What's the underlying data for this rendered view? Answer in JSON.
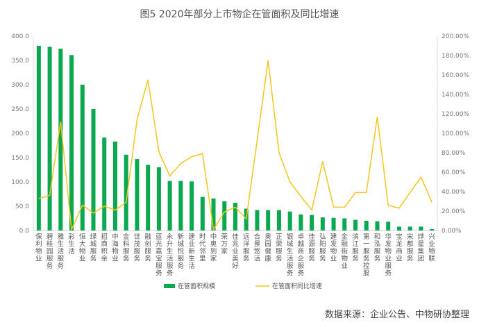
{
  "title": "图5  2020年部分上市物企在管面积及同比增速",
  "source": "数据来源：企业公告、中物研协整理",
  "colors": {
    "bar": "#0aa84f",
    "line": "#f6c51b"
  },
  "chart_data": {
    "type": "bar+line",
    "title": "图5  2020年部分上市物企在管面积及同比增速",
    "categories": [
      "保利物业",
      "碧桂园服务",
      "雅生活服务",
      "彩生活",
      "恒大物业",
      "绿城服务",
      "招商积余",
      "中海物业",
      "金科服务",
      "世茂服务",
      "融创服务",
      "蓝光嘉宝服务",
      "永升生活服务",
      "新城悦服务",
      "建业新生活",
      "时代邻里",
      "中奥到家",
      "荣万家",
      "佳兆业美好",
      "远洋服务",
      "合景悠活",
      "奥园健康",
      "正荣服务",
      "银城生活服务",
      "卓越商企服务",
      "佳源服务",
      "弘阳服务",
      "建发物业",
      "金融街物业",
      "滨江服务",
      "第一服务控股",
      "和泓服务",
      "华发物业服务",
      "宝龙商业",
      "宋都服务",
      "烨星集团",
      "兴业物联"
    ],
    "series": [
      {
        "name": "在管面积规模",
        "type": "bar",
        "axis": "left",
        "values": [
          380,
          378,
          374,
          361,
          300,
          250,
          191,
          183,
          156,
          147,
          135,
          130,
          102,
          102,
          101,
          69,
          66,
          60,
          57,
          45,
          42,
          42,
          42,
          39,
          33,
          32,
          27,
          26,
          25,
          22,
          20,
          19,
          18,
          8,
          8,
          8,
          3
        ]
      },
      {
        "name": "在管面积同比增速",
        "type": "line",
        "axis": "right",
        "unit": "%",
        "values": [
          33,
          36,
          112,
          1,
          26,
          18,
          25,
          21,
          29,
          114,
          155,
          81,
          56,
          69,
          76,
          79,
          1,
          19,
          24,
          12,
          93,
          175,
          80,
          50,
          35,
          21,
          71,
          24,
          24,
          39,
          39,
          117,
          26,
          23,
          39,
          55,
          29
        ]
      }
    ],
    "left_axis": {
      "range": [
        0,
        400
      ],
      "ticks": [
        "0.0",
        "50.0",
        "100.0",
        "150.0",
        "200.0",
        "250.0",
        "300.0",
        "350.0",
        "400.0"
      ]
    },
    "right_axis": {
      "range": [
        0,
        200
      ],
      "ticks": [
        "0.00%",
        "20.00%",
        "40.00%",
        "60.00%",
        "80.00%",
        "100.00%",
        "120.00%",
        "140.00%",
        "160.00%",
        "180.00%",
        "200.00%"
      ]
    },
    "grid": false,
    "legend": "bottom"
  }
}
